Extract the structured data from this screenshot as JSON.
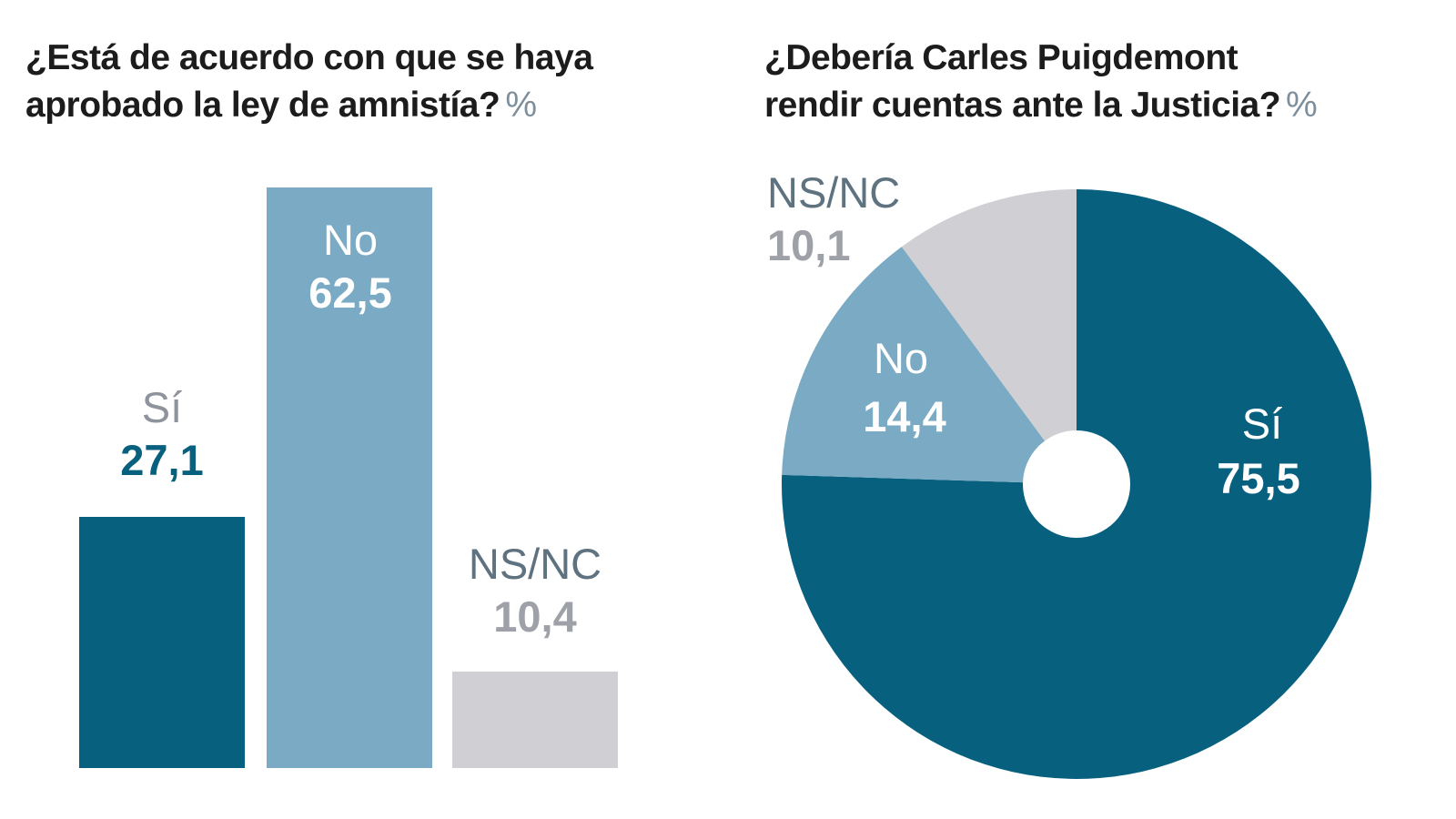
{
  "page": {
    "background": "#ffffff",
    "title_color": "#1c1c1c",
    "percent_color": "#7d8f9c"
  },
  "chart_data": [
    {
      "type": "bar",
      "title_lines": [
        "¿Está de acuerdo con que se haya",
        "aprobado la ley de amnistía?"
      ],
      "unit": "%",
      "categories": [
        "Sí",
        "No",
        "NS/NC"
      ],
      "values": [
        27.1,
        62.5,
        10.4
      ],
      "value_labels": [
        "27,1",
        "62,5",
        "10,4"
      ],
      "bar_colors": [
        "#08607f",
        "#7aaac4",
        "#d0d0d4"
      ],
      "name_colors": [
        "#8e939c",
        "#ffffff",
        "#5e7280"
      ],
      "value_colors": [
        "#08607f",
        "#ffffff",
        "#9fa1a8"
      ],
      "ylim": [
        0,
        65
      ],
      "grid": false,
      "axis_labels": "none — direct category/value labels at bars",
      "label_inside_bar": [
        false,
        true,
        false
      ]
    },
    {
      "type": "pie",
      "subtype": "donut",
      "title_lines": [
        "¿Debería Carles Puigdemont",
        "rendir cuentas ante la Justicia?"
      ],
      "unit": "%",
      "categories": [
        "Sí",
        "No",
        "NS/NC"
      ],
      "values": [
        75.5,
        14.4,
        10.1
      ],
      "value_labels": [
        "75,5",
        "14,4",
        "10,1"
      ],
      "slice_colors": [
        "#08607f",
        "#7aaac4",
        "#d0d0d4"
      ],
      "name_colors": [
        "#ffffff",
        "#ffffff",
        "#5e7280"
      ],
      "value_colors": [
        "#ffffff",
        "#ffffff",
        "#9fa1a8"
      ],
      "start_angle": "12 o'clock",
      "direction": "clockwise",
      "donut_hole_color": "#ffffff",
      "label_inside_slice": [
        true,
        true,
        false
      ]
    }
  ]
}
